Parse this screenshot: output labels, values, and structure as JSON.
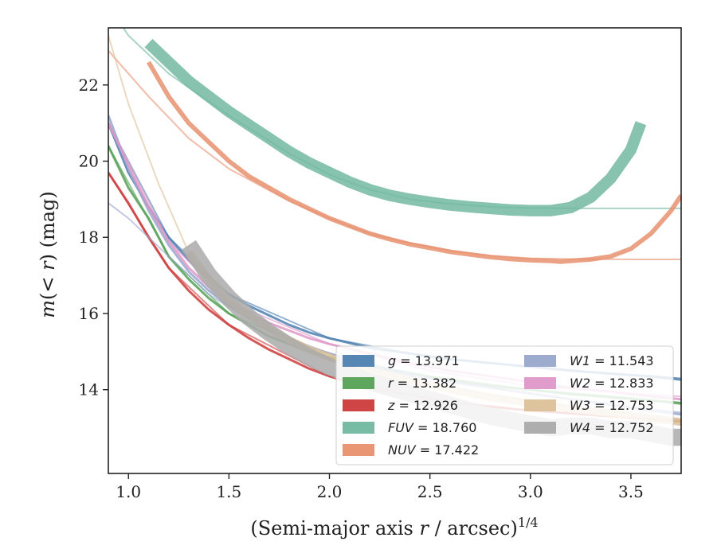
{
  "chart_data": {
    "type": "line",
    "xlabel": "(Semi-major axis r / arcsec)^1/4",
    "xlabel_parts": {
      "pre": "(Semi-major axis ",
      "var": "r",
      "mid": " / arcsec)",
      "sup": "1/4"
    },
    "ylabel": "m(< r) (mag)",
    "xlim": [
      0.9,
      3.75
    ],
    "ylim": [
      23.5,
      11.8
    ],
    "y_inverted": true,
    "xticks": [
      "1.0",
      "1.5",
      "2.0",
      "2.5",
      "3.0",
      "3.5"
    ],
    "yticks": [
      "14",
      "16",
      "18",
      "20",
      "22"
    ],
    "legend_position": "lower-right",
    "legend": [
      {
        "band": "g",
        "text": " = 13.971",
        "color": "#4c7fb0"
      },
      {
        "band": "r",
        "text": " = 13.382",
        "color": "#55a055"
      },
      {
        "band": "z",
        "text": " = 12.926",
        "color": "#cc3b3b"
      },
      {
        "band": "FUV",
        "text": " = 18.760",
        "color": "#72b8a0"
      },
      {
        "band": "NUV",
        "text": " = 17.422",
        "color": "#e8906e"
      },
      {
        "band": "W1",
        "text": " = 11.543",
        "color": "#98a6cc"
      },
      {
        "band": "W2",
        "text": " = 12.833",
        "color": "#de98c8"
      },
      {
        "band": "W3",
        "text": " = 12.753",
        "color": "#dcc09a"
      },
      {
        "band": "W4",
        "text": " = 12.752",
        "color": "#aaaaaa"
      }
    ],
    "series": [
      {
        "name": "g",
        "color": "#4c7fb0",
        "band_width": 0.04,
        "data": [
          [
            0.9,
            21.0
          ],
          [
            1.0,
            19.7
          ],
          [
            1.1,
            18.8
          ],
          [
            1.2,
            18.0
          ],
          [
            1.3,
            17.4
          ],
          [
            1.4,
            16.9
          ],
          [
            1.5,
            16.5
          ],
          [
            1.6,
            16.2
          ],
          [
            1.7,
            15.95
          ],
          [
            1.8,
            15.7
          ],
          [
            1.9,
            15.5
          ],
          [
            2.0,
            15.35
          ],
          [
            2.2,
            15.1
          ],
          [
            2.4,
            14.95
          ],
          [
            2.6,
            14.8
          ],
          [
            2.8,
            14.7
          ],
          [
            3.0,
            14.6
          ],
          [
            3.2,
            14.5
          ],
          [
            3.4,
            14.42
          ],
          [
            3.6,
            14.35
          ],
          [
            3.75,
            14.28
          ]
        ],
        "model": [
          [
            0.9,
            21.0
          ],
          [
            1.2,
            18.0
          ],
          [
            1.5,
            16.5
          ],
          [
            2.0,
            15.35
          ],
          [
            2.5,
            14.85
          ],
          [
            3.0,
            14.6
          ],
          [
            3.5,
            14.38
          ],
          [
            3.75,
            14.25
          ]
        ]
      },
      {
        "name": "r",
        "color": "#55a055",
        "band_width": 0.05,
        "data": [
          [
            0.9,
            20.4
          ],
          [
            1.0,
            19.3
          ],
          [
            1.1,
            18.5
          ],
          [
            1.2,
            17.5
          ],
          [
            1.3,
            16.9
          ],
          [
            1.4,
            16.4
          ],
          [
            1.5,
            16.0
          ],
          [
            1.6,
            15.7
          ],
          [
            1.7,
            15.4
          ],
          [
            1.8,
            15.2
          ],
          [
            1.9,
            15.0
          ],
          [
            2.0,
            14.85
          ],
          [
            2.2,
            14.6
          ],
          [
            2.4,
            14.42
          ],
          [
            2.6,
            14.25
          ],
          [
            2.8,
            14.1
          ],
          [
            3.0,
            14.0
          ],
          [
            3.2,
            13.88
          ],
          [
            3.4,
            13.8
          ],
          [
            3.6,
            13.72
          ],
          [
            3.75,
            13.65
          ]
        ],
        "model": [
          [
            0.9,
            20.4
          ],
          [
            1.2,
            17.5
          ],
          [
            1.5,
            16.0
          ],
          [
            2.0,
            14.85
          ],
          [
            2.5,
            14.35
          ],
          [
            3.0,
            14.0
          ],
          [
            3.5,
            13.78
          ],
          [
            3.75,
            13.62
          ]
        ]
      },
      {
        "name": "z",
        "color": "#cc3b3b",
        "band_width": 0.05,
        "data": [
          [
            0.9,
            19.7
          ],
          [
            1.0,
            18.9
          ],
          [
            1.1,
            18.0
          ],
          [
            1.2,
            17.2
          ],
          [
            1.3,
            16.6
          ],
          [
            1.4,
            16.1
          ],
          [
            1.5,
            15.7
          ],
          [
            1.6,
            15.35
          ],
          [
            1.7,
            15.05
          ],
          [
            1.8,
            14.8
          ],
          [
            1.9,
            14.55
          ],
          [
            2.0,
            14.35
          ],
          [
            2.2,
            14.05
          ],
          [
            2.4,
            13.85
          ],
          [
            2.6,
            13.68
          ],
          [
            2.8,
            13.55
          ],
          [
            3.0,
            13.45
          ],
          [
            3.2,
            13.38
          ],
          [
            3.4,
            13.3
          ],
          [
            3.6,
            13.22
          ],
          [
            3.75,
            13.18
          ]
        ],
        "model": [
          [
            0.9,
            19.7
          ],
          [
            1.2,
            17.2
          ],
          [
            1.5,
            15.7
          ],
          [
            2.0,
            14.35
          ],
          [
            2.5,
            13.75
          ],
          [
            3.0,
            13.45
          ],
          [
            3.5,
            13.25
          ],
          [
            3.75,
            13.15
          ]
        ]
      },
      {
        "name": "FUV",
        "color": "#72b8a0",
        "band_width": 0.3,
        "data": [
          [
            1.1,
            23.1
          ],
          [
            1.2,
            22.6
          ],
          [
            1.3,
            22.1
          ],
          [
            1.4,
            21.7
          ],
          [
            1.5,
            21.3
          ],
          [
            1.6,
            20.95
          ],
          [
            1.7,
            20.6
          ],
          [
            1.8,
            20.25
          ],
          [
            1.9,
            19.95
          ],
          [
            2.0,
            19.7
          ],
          [
            2.1,
            19.45
          ],
          [
            2.2,
            19.25
          ],
          [
            2.3,
            19.1
          ],
          [
            2.4,
            19.0
          ],
          [
            2.5,
            18.92
          ],
          [
            2.6,
            18.85
          ],
          [
            2.7,
            18.8
          ],
          [
            2.8,
            18.76
          ],
          [
            2.9,
            18.72
          ],
          [
            3.0,
            18.7
          ],
          [
            3.1,
            18.7
          ],
          [
            3.2,
            18.78
          ],
          [
            3.3,
            19.05
          ],
          [
            3.4,
            19.55
          ],
          [
            3.5,
            20.3
          ],
          [
            3.55,
            21.0
          ]
        ],
        "model": [
          [
            0.9,
            24.1
          ],
          [
            1.0,
            23.3
          ],
          [
            1.2,
            22.3
          ],
          [
            1.5,
            21.2
          ],
          [
            1.8,
            20.2
          ],
          [
            2.0,
            19.65
          ],
          [
            2.2,
            19.25
          ],
          [
            2.4,
            19.0
          ],
          [
            2.6,
            18.88
          ],
          [
            2.8,
            18.8
          ],
          [
            3.0,
            18.77
          ],
          [
            3.2,
            18.76
          ],
          [
            3.5,
            18.76
          ],
          [
            3.75,
            18.76
          ]
        ]
      },
      {
        "name": "NUV",
        "color": "#e8906e",
        "band_width": 0.12,
        "data": [
          [
            1.1,
            22.6
          ],
          [
            1.2,
            21.7
          ],
          [
            1.3,
            21.0
          ],
          [
            1.4,
            20.5
          ],
          [
            1.5,
            20.0
          ],
          [
            1.6,
            19.6
          ],
          [
            1.7,
            19.3
          ],
          [
            1.8,
            19.0
          ],
          [
            1.9,
            18.75
          ],
          [
            2.0,
            18.5
          ],
          [
            2.1,
            18.3
          ],
          [
            2.2,
            18.1
          ],
          [
            2.3,
            17.95
          ],
          [
            2.4,
            17.82
          ],
          [
            2.5,
            17.72
          ],
          [
            2.6,
            17.62
          ],
          [
            2.7,
            17.55
          ],
          [
            2.8,
            17.48
          ],
          [
            2.9,
            17.43
          ],
          [
            3.0,
            17.4
          ],
          [
            3.1,
            17.38
          ],
          [
            3.15,
            17.36
          ],
          [
            3.2,
            17.38
          ],
          [
            3.3,
            17.42
          ],
          [
            3.4,
            17.5
          ],
          [
            3.5,
            17.7
          ],
          [
            3.6,
            18.1
          ],
          [
            3.7,
            18.7
          ],
          [
            3.75,
            19.1
          ]
        ],
        "model": [
          [
            0.9,
            22.9
          ],
          [
            1.1,
            21.7
          ],
          [
            1.3,
            20.6
          ],
          [
            1.5,
            19.8
          ],
          [
            1.8,
            18.95
          ],
          [
            2.0,
            18.5
          ],
          [
            2.2,
            18.1
          ],
          [
            2.4,
            17.85
          ],
          [
            2.6,
            17.65
          ],
          [
            2.8,
            17.52
          ],
          [
            3.0,
            17.45
          ],
          [
            3.2,
            17.43
          ],
          [
            3.5,
            17.42
          ],
          [
            3.75,
            17.42
          ]
        ]
      },
      {
        "name": "W1",
        "color": "#98a6cc",
        "band_width": 0.05,
        "data": [
          [
            0.9,
            21.2
          ],
          [
            1.0,
            19.8
          ],
          [
            1.1,
            18.7
          ],
          [
            1.2,
            17.8
          ],
          [
            1.3,
            17.1
          ],
          [
            1.4,
            16.6
          ],
          [
            1.5,
            16.2
          ],
          [
            1.6,
            15.9
          ],
          [
            1.7,
            15.6
          ],
          [
            1.8,
            15.35
          ],
          [
            1.9,
            15.12
          ],
          [
            2.0,
            14.95
          ],
          [
            2.2,
            14.62
          ],
          [
            2.4,
            14.38
          ],
          [
            2.6,
            14.2
          ],
          [
            2.8,
            14.05
          ],
          [
            3.0,
            13.9
          ],
          [
            3.2,
            13.75
          ],
          [
            3.4,
            13.6
          ],
          [
            3.6,
            13.45
          ],
          [
            3.75,
            13.35
          ]
        ],
        "model": [
          [
            0.9,
            18.9
          ],
          [
            1.0,
            18.5
          ],
          [
            1.2,
            17.5
          ],
          [
            1.4,
            16.5
          ],
          [
            1.6,
            15.85
          ],
          [
            1.8,
            15.35
          ],
          [
            2.0,
            14.95
          ],
          [
            2.5,
            14.3
          ],
          [
            3.0,
            13.9
          ],
          [
            3.5,
            13.55
          ],
          [
            3.75,
            13.4
          ]
        ]
      },
      {
        "name": "W2",
        "color": "#de98c8",
        "band_width": 0.06,
        "data": [
          [
            0.9,
            21.0
          ],
          [
            1.0,
            19.9
          ],
          [
            1.1,
            18.8
          ],
          [
            1.2,
            17.9
          ],
          [
            1.3,
            17.2
          ],
          [
            1.4,
            16.7
          ],
          [
            1.5,
            16.3
          ],
          [
            1.6,
            16.0
          ],
          [
            1.7,
            15.75
          ],
          [
            1.8,
            15.55
          ],
          [
            1.9,
            15.35
          ],
          [
            2.0,
            15.2
          ],
          [
            2.2,
            14.95
          ],
          [
            2.4,
            14.7
          ],
          [
            2.6,
            14.5
          ],
          [
            2.8,
            14.35
          ],
          [
            3.0,
            14.2
          ],
          [
            3.2,
            14.05
          ],
          [
            3.4,
            13.95
          ],
          [
            3.6,
            13.82
          ],
          [
            3.75,
            13.75
          ]
        ],
        "model": [
          [
            0.9,
            21.0
          ],
          [
            1.2,
            17.9
          ],
          [
            1.5,
            16.3
          ],
          [
            2.0,
            15.2
          ],
          [
            2.5,
            14.5
          ],
          [
            3.0,
            14.1
          ],
          [
            3.5,
            13.9
          ],
          [
            3.75,
            13.82
          ]
        ]
      },
      {
        "name": "W3",
        "color": "#dcc09a",
        "band_width": 0.2,
        "data": [
          [
            1.3,
            17.6
          ],
          [
            1.4,
            16.9
          ],
          [
            1.5,
            16.35
          ],
          [
            1.6,
            15.95
          ],
          [
            1.7,
            15.6
          ],
          [
            1.8,
            15.3
          ],
          [
            1.9,
            15.05
          ],
          [
            2.0,
            14.85
          ],
          [
            2.2,
            14.5
          ],
          [
            2.4,
            14.25
          ],
          [
            2.6,
            14.0
          ],
          [
            2.8,
            13.8
          ],
          [
            3.0,
            13.65
          ],
          [
            3.2,
            13.5
          ],
          [
            3.4,
            13.38
          ],
          [
            3.6,
            13.25
          ],
          [
            3.75,
            13.15
          ]
        ],
        "model": [
          [
            0.9,
            23.3
          ],
          [
            1.0,
            21.5
          ],
          [
            1.1,
            20.1
          ],
          [
            1.15,
            19.4
          ],
          [
            1.3,
            17.6
          ],
          [
            1.5,
            16.3
          ],
          [
            1.8,
            15.3
          ],
          [
            2.0,
            14.8
          ],
          [
            2.5,
            14.15
          ],
          [
            3.0,
            13.7
          ],
          [
            3.5,
            13.35
          ],
          [
            3.75,
            13.2
          ]
        ]
      },
      {
        "name": "W4",
        "color": "#aaaaaa",
        "band_width": 0.45,
        "data": [
          [
            1.3,
            17.8
          ],
          [
            1.4,
            17.0
          ],
          [
            1.5,
            16.4
          ],
          [
            1.6,
            15.9
          ],
          [
            1.7,
            15.5
          ],
          [
            1.8,
            15.15
          ],
          [
            1.9,
            14.85
          ],
          [
            2.0,
            14.6
          ],
          [
            2.1,
            14.4
          ],
          [
            2.2,
            14.2
          ],
          [
            2.3,
            14.05
          ],
          [
            2.4,
            13.9
          ],
          [
            2.5,
            13.75
          ],
          [
            2.6,
            13.6
          ],
          [
            2.7,
            13.45
          ],
          [
            2.8,
            13.3
          ],
          [
            2.9,
            13.2
          ],
          [
            3.0,
            13.1
          ],
          [
            3.1,
            13.0
          ],
          [
            3.2,
            13.05
          ],
          [
            3.3,
            13.05
          ],
          [
            3.4,
            12.95
          ],
          [
            3.5,
            12.95
          ],
          [
            3.6,
            12.85
          ],
          [
            3.7,
            12.75
          ],
          [
            3.75,
            12.75
          ]
        ],
        "model": []
      }
    ]
  }
}
